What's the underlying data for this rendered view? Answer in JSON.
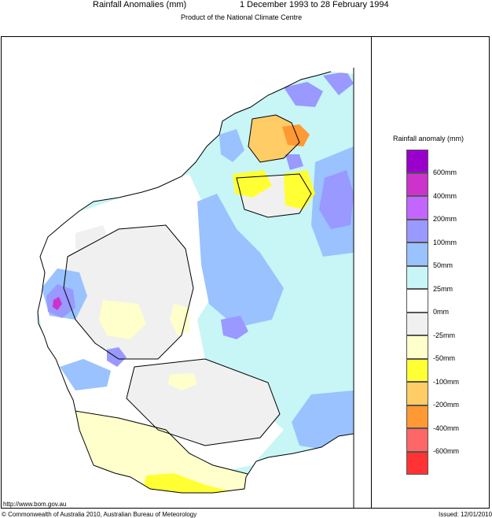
{
  "header": {
    "title": "Rainfall Anomalies (mm)",
    "period": "1 December 1993 to 28 February 1994",
    "product": "Product of the National Climate Centre"
  },
  "legend": {
    "title": "Rainfall anomaly (mm)",
    "items": [
      {
        "label": "600mm",
        "color": "#9a00cc"
      },
      {
        "label": "400mm",
        "color": "#cc33cc"
      },
      {
        "label": "200mm",
        "color": "#c266ff"
      },
      {
        "label": "100mm",
        "color": "#9999ff"
      },
      {
        "label": "50mm",
        "color": "#99c2ff"
      },
      {
        "label": "25mm",
        "color": "#c8f5f5"
      },
      {
        "label": "0mm",
        "color": "#ffffff"
      },
      {
        "label": "-25mm",
        "color": "#f0f0f0"
      },
      {
        "label": "-50mm",
        "color": "#ffffcc"
      },
      {
        "label": "-100mm",
        "color": "#ffff33"
      },
      {
        "label": "-200mm",
        "color": "#ffcc66"
      },
      {
        "label": "-400mm",
        "color": "#ff9933"
      },
      {
        "label": "-600mm",
        "color": "#ff6666"
      },
      {
        "label": "",
        "color": "#ff3333"
      }
    ]
  },
  "footer": {
    "url": "http://www.bom.gov.au",
    "copyright": "© Commonwealth of Australia 2010, Australian Bureau of Meteorology",
    "issued": "Issued: 12/01/2010"
  }
}
